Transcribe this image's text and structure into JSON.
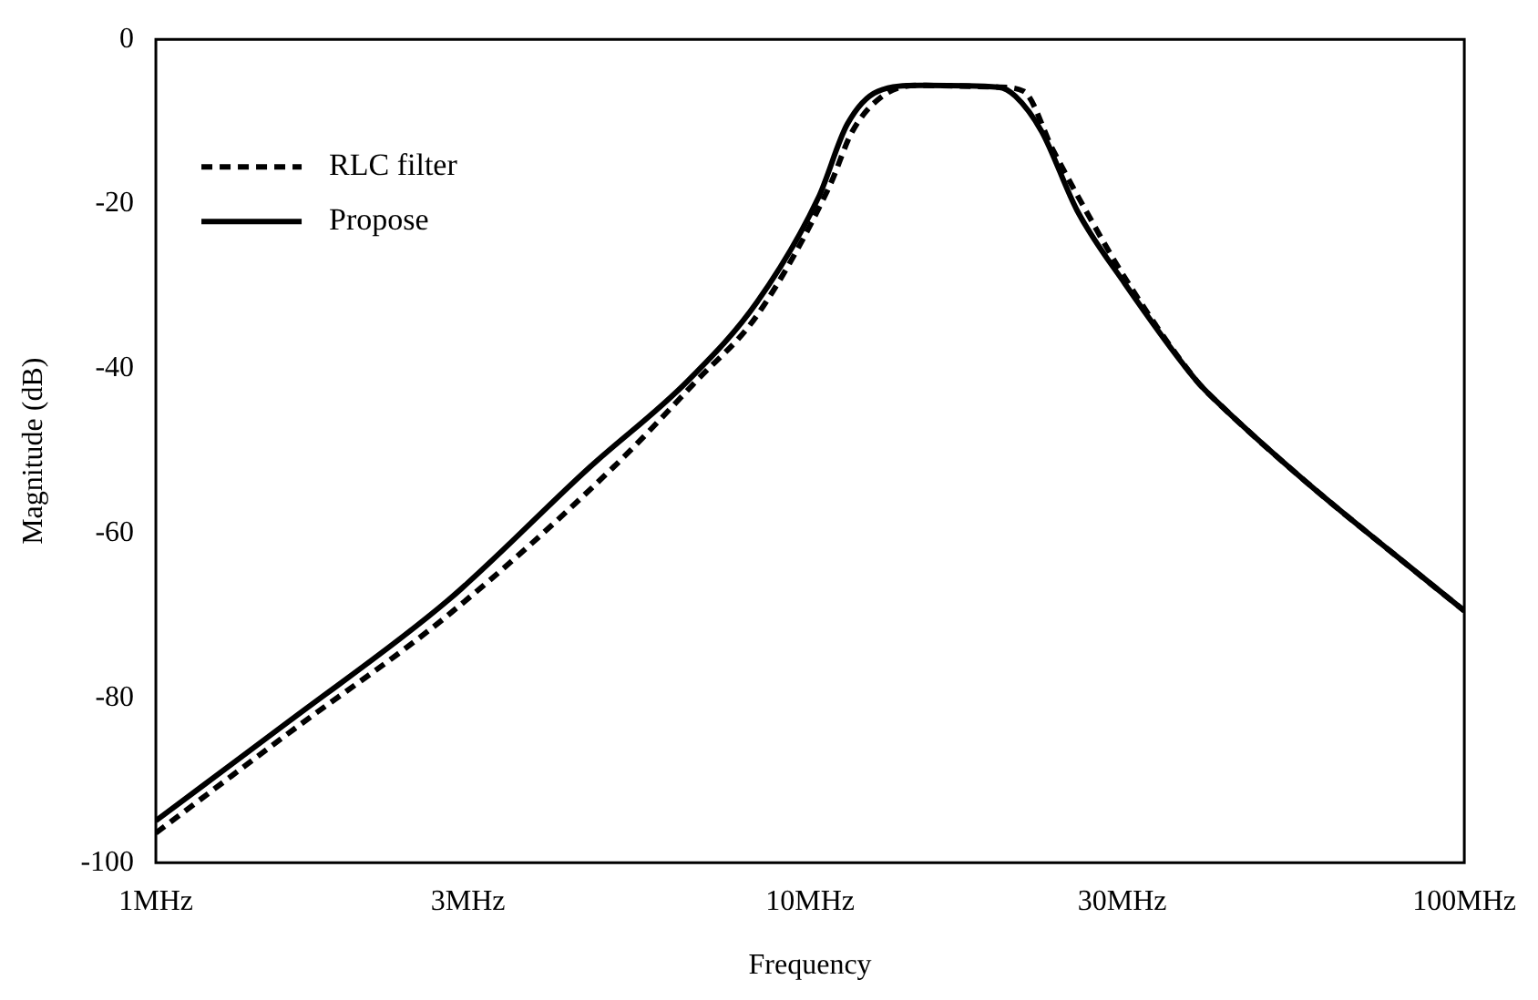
{
  "chart_data": {
    "type": "line",
    "xlabel": "Frequency",
    "ylabel": "Magnitude (dB)",
    "log": "x",
    "xlim": [
      1,
      100
    ],
    "xticks": [
      {
        "value": 1,
        "label": "1MHz"
      },
      {
        "value": 3,
        "label": "3MHz"
      },
      {
        "value": 10,
        "label": "10MHz"
      },
      {
        "value": 30,
        "label": "30MHz"
      },
      {
        "value": 100,
        "label": "100MHz"
      }
    ],
    "ylim": [
      -100,
      0
    ],
    "yticks": [
      -100,
      -80,
      -60,
      -40,
      -20,
      0
    ],
    "grid": false,
    "legend": "top left",
    "marker": "none",
    "series": [
      {
        "name": "RLC filter",
        "color": "#000000",
        "line_style": "dashed",
        "x": [
          1,
          1.6,
          2.8,
          5,
          6.7,
          8.3,
          10.7,
          11.6,
          13,
          14.7,
          19.4,
          21.2,
          23.5,
          26.1,
          30.3,
          39,
          41.6,
          57,
          78,
          100
        ],
        "values": [
          -96.4,
          -84.2,
          -69.9,
          -52,
          -41.5,
          -33.5,
          -17.9,
          -11.2,
          -6.7,
          -5.6,
          -5.8,
          -6.3,
          -13.4,
          -20.1,
          -29,
          -41.5,
          -43.8,
          -53.6,
          -62.5,
          -69.4
        ]
      },
      {
        "name": "Propose",
        "color": "#000000",
        "line_style": "solid",
        "x": [
          1,
          1.6,
          2.8,
          4.6,
          6.5,
          8.3,
          10.3,
          11.4,
          12.7,
          14.7,
          19.4,
          20.6,
          22.6,
          25.6,
          30.3,
          39,
          41.6,
          57,
          78,
          100
        ],
        "values": [
          -94.9,
          -82.8,
          -68.1,
          -52,
          -41.5,
          -31.9,
          -19.2,
          -10.3,
          -6.3,
          -5.6,
          -5.8,
          -6.9,
          -11.2,
          -20.8,
          -29.7,
          -41.5,
          -43.8,
          -53.6,
          -62.5,
          -69.4
        ]
      }
    ]
  }
}
